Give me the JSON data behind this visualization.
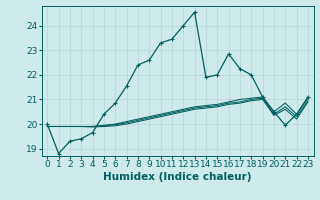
{
  "xlabel": "Humidex (Indice chaleur)",
  "background_color": "#ceeaea",
  "line_color": "#006060",
  "grid_color": "#b8d4d4",
  "xlim": [
    -0.5,
    23.5
  ],
  "ylim": [
    18.7,
    24.8
  ],
  "yticks": [
    19,
    20,
    21,
    22,
    23,
    24
  ],
  "xticks": [
    0,
    1,
    2,
    3,
    4,
    5,
    6,
    7,
    8,
    9,
    10,
    11,
    12,
    13,
    14,
    15,
    16,
    17,
    18,
    19,
    20,
    21,
    22,
    23
  ],
  "main_line_x": [
    0,
    1,
    2,
    3,
    4,
    5,
    6,
    7,
    8,
    9,
    10,
    11,
    12,
    13,
    14,
    15,
    16,
    17,
    18,
    19,
    20,
    21,
    22,
    23
  ],
  "main_line_y": [
    20.0,
    18.8,
    19.3,
    19.4,
    19.65,
    20.4,
    20.85,
    21.55,
    22.4,
    22.6,
    23.3,
    23.45,
    24.0,
    24.55,
    21.9,
    22.0,
    22.85,
    22.25,
    22.0,
    21.1,
    20.5,
    19.95,
    20.4,
    21.1
  ],
  "band_lines": [
    [
      19.9,
      19.9,
      19.9,
      19.9,
      19.9,
      19.95,
      20.0,
      20.1,
      20.2,
      20.3,
      20.4,
      20.5,
      20.6,
      20.7,
      20.75,
      20.8,
      20.9,
      21.0,
      21.05,
      21.1,
      20.5,
      20.85,
      20.4,
      21.05
    ],
    [
      19.9,
      19.9,
      19.9,
      19.9,
      19.9,
      19.93,
      19.97,
      20.05,
      20.15,
      20.25,
      20.35,
      20.45,
      20.55,
      20.65,
      20.7,
      20.75,
      20.85,
      20.9,
      21.0,
      21.05,
      20.4,
      20.7,
      20.3,
      20.95
    ],
    [
      19.9,
      19.9,
      19.9,
      19.9,
      19.88,
      19.9,
      19.93,
      20.0,
      20.1,
      20.2,
      20.3,
      20.4,
      20.5,
      20.6,
      20.65,
      20.7,
      20.8,
      20.85,
      20.95,
      21.0,
      20.35,
      20.6,
      20.2,
      20.9
    ]
  ],
  "tick_fontsize": 6.5,
  "xlabel_fontsize": 7.5
}
